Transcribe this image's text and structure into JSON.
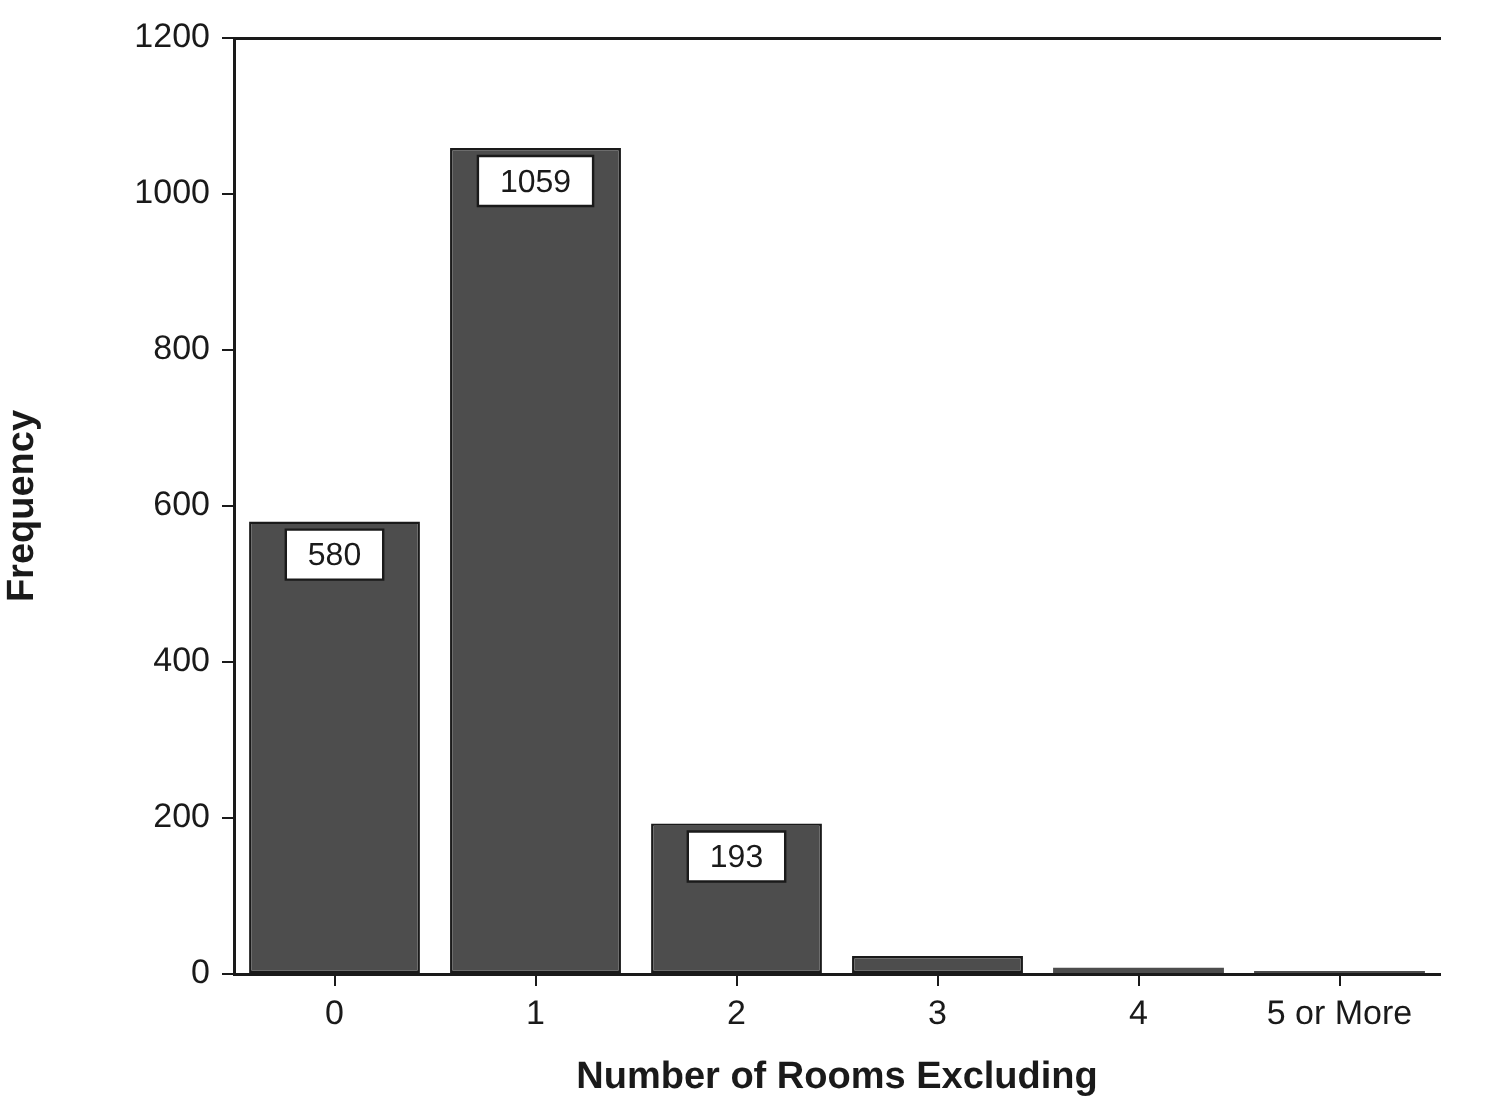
{
  "chart_data": {
    "type": "bar",
    "xlabel": "Number of Rooms Excluding",
    "ylabel": "Frequency",
    "categories": [
      "0",
      "1",
      "2",
      "3",
      "4",
      "5 or More"
    ],
    "values": [
      580,
      1059,
      193,
      23,
      8,
      4
    ],
    "color": "#4d4d4d",
    "value_labels": [
      "580",
      "1059",
      "193",
      null,
      null,
      null
    ],
    "ylim": [
      0,
      1200
    ],
    "yticks": [
      0,
      200,
      400,
      600,
      800,
      1000,
      1200
    ],
    "grid": false,
    "legend": false
  }
}
